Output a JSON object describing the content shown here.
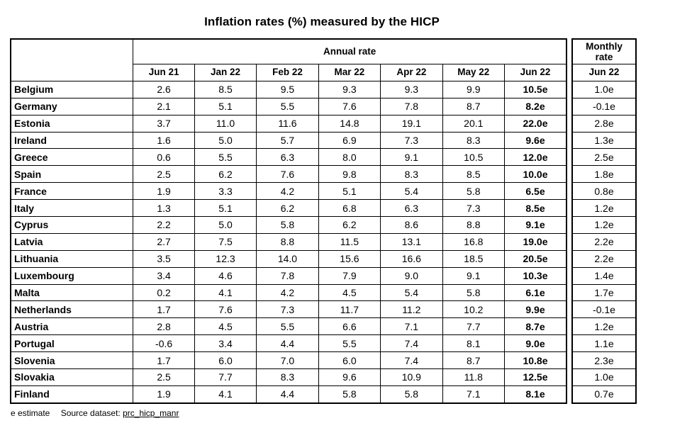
{
  "title": "Inflation rates (%) measured by the HICP",
  "annual_header": "Annual rate",
  "monthly_header_line1": "Monthly",
  "monthly_header_line2": "rate",
  "monthly_column": "Jun 22",
  "footnote": {
    "estimate": "e estimate",
    "source_label": "Source dataset:",
    "source_link": "prc_hicp_manr"
  },
  "chart_data": {
    "type": "table",
    "title": "Inflation rates (%) measured by the HICP",
    "columns": [
      "Jun 21",
      "Jan 22",
      "Feb 22",
      "Mar 22",
      "Apr 22",
      "May 22",
      "Jun 22"
    ],
    "rows": [
      {
        "country": "Belgium",
        "values": [
          "2.6",
          "8.5",
          "9.5",
          "9.3",
          "9.3",
          "9.9",
          "10.5e"
        ],
        "monthly": "1.0e"
      },
      {
        "country": "Germany",
        "values": [
          "2.1",
          "5.1",
          "5.5",
          "7.6",
          "7.8",
          "8.7",
          "8.2e"
        ],
        "monthly": "-0.1e"
      },
      {
        "country": "Estonia",
        "values": [
          "3.7",
          "11.0",
          "11.6",
          "14.8",
          "19.1",
          "20.1",
          "22.0e"
        ],
        "monthly": "2.8e"
      },
      {
        "country": "Ireland",
        "values": [
          "1.6",
          "5.0",
          "5.7",
          "6.9",
          "7.3",
          "8.3",
          "9.6e"
        ],
        "monthly": "1.3e"
      },
      {
        "country": "Greece",
        "values": [
          "0.6",
          "5.5",
          "6.3",
          "8.0",
          "9.1",
          "10.5",
          "12.0e"
        ],
        "monthly": "2.5e"
      },
      {
        "country": "Spain",
        "values": [
          "2.5",
          "6.2",
          "7.6",
          "9.8",
          "8.3",
          "8.5",
          "10.0e"
        ],
        "monthly": "1.8e"
      },
      {
        "country": "France",
        "values": [
          "1.9",
          "3.3",
          "4.2",
          "5.1",
          "5.4",
          "5.8",
          "6.5e"
        ],
        "monthly": "0.8e"
      },
      {
        "country": "Italy",
        "values": [
          "1.3",
          "5.1",
          "6.2",
          "6.8",
          "6.3",
          "7.3",
          "8.5e"
        ],
        "monthly": "1.2e"
      },
      {
        "country": "Cyprus",
        "values": [
          "2.2",
          "5.0",
          "5.8",
          "6.2",
          "8.6",
          "8.8",
          "9.1e"
        ],
        "monthly": "1.2e"
      },
      {
        "country": "Latvia",
        "values": [
          "2.7",
          "7.5",
          "8.8",
          "11.5",
          "13.1",
          "16.8",
          "19.0e"
        ],
        "monthly": "2.2e"
      },
      {
        "country": "Lithuania",
        "values": [
          "3.5",
          "12.3",
          "14.0",
          "15.6",
          "16.6",
          "18.5",
          "20.5e"
        ],
        "monthly": "2.2e"
      },
      {
        "country": "Luxembourg",
        "values": [
          "3.4",
          "4.6",
          "7.8",
          "7.9",
          "9.0",
          "9.1",
          "10.3e"
        ],
        "monthly": "1.4e"
      },
      {
        "country": "Malta",
        "values": [
          "0.2",
          "4.1",
          "4.2",
          "4.5",
          "5.4",
          "5.8",
          "6.1e"
        ],
        "monthly": "1.7e"
      },
      {
        "country": "Netherlands",
        "values": [
          "1.7",
          "7.6",
          "7.3",
          "11.7",
          "11.2",
          "10.2",
          "9.9e"
        ],
        "monthly": "-0.1e"
      },
      {
        "country": "Austria",
        "values": [
          "2.8",
          "4.5",
          "5.5",
          "6.6",
          "7.1",
          "7.7",
          "8.7e"
        ],
        "monthly": "1.2e"
      },
      {
        "country": "Portugal",
        "values": [
          "-0.6",
          "3.4",
          "4.4",
          "5.5",
          "7.4",
          "8.1",
          "9.0e"
        ],
        "monthly": "1.1e"
      },
      {
        "country": "Slovenia",
        "values": [
          "1.7",
          "6.0",
          "7.0",
          "6.0",
          "7.4",
          "8.7",
          "10.8e"
        ],
        "monthly": "2.3e"
      },
      {
        "country": "Slovakia",
        "values": [
          "2.5",
          "7.7",
          "8.3",
          "9.6",
          "10.9",
          "11.8",
          "12.5e"
        ],
        "monthly": "1.0e"
      },
      {
        "country": "Finland",
        "values": [
          "1.9",
          "4.1",
          "4.4",
          "5.8",
          "5.8",
          "7.1",
          "8.1e"
        ],
        "monthly": "0.7e"
      }
    ]
  }
}
